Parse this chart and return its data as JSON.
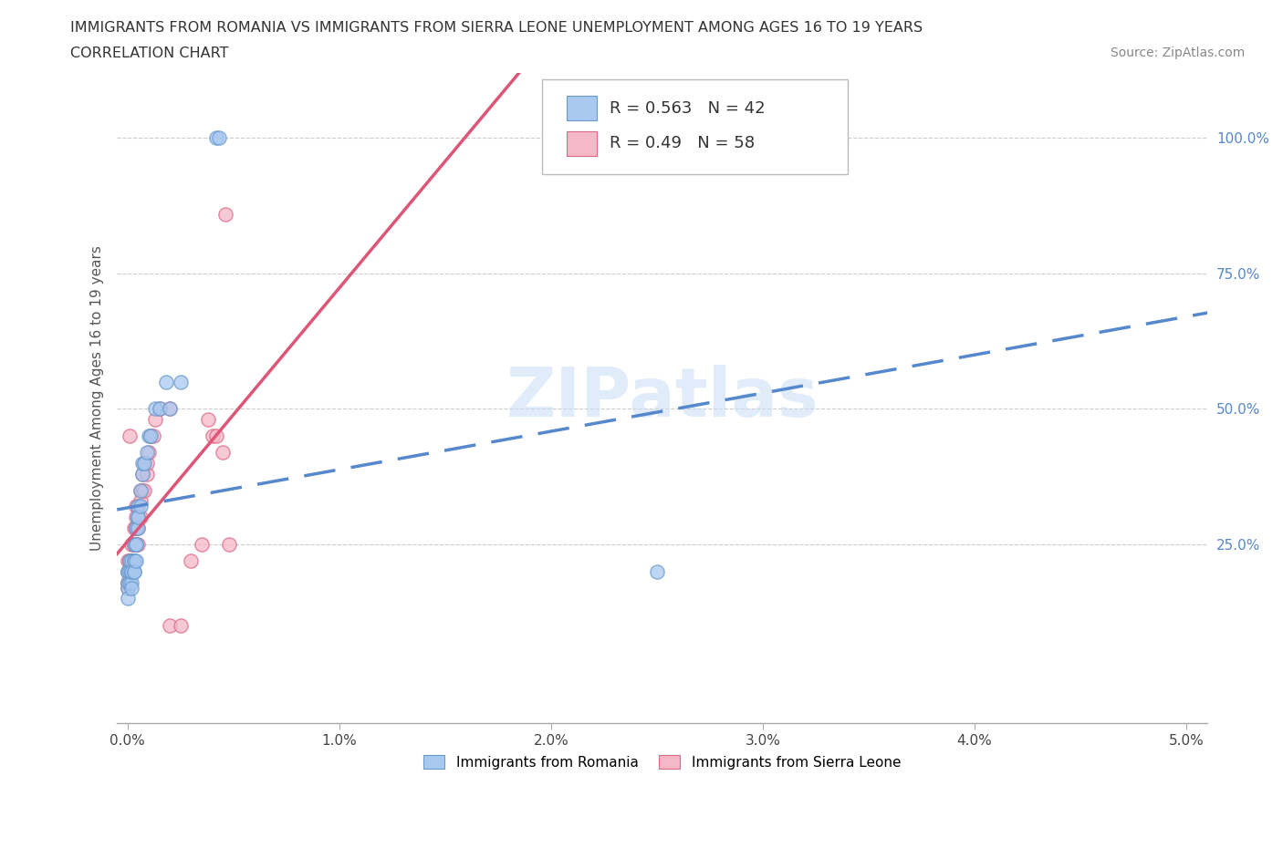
{
  "title_line1": "IMMIGRANTS FROM ROMANIA VS IMMIGRANTS FROM SIERRA LEONE UNEMPLOYMENT AMONG AGES 16 TO 19 YEARS",
  "title_line2": "CORRELATION CHART",
  "source_text": "Source: ZipAtlas.com",
  "ylabel": "Unemployment Among Ages 16 to 19 years",
  "xlim": [
    -0.0005,
    0.051
  ],
  "ylim": [
    -0.08,
    1.12
  ],
  "xtick_labels": [
    "0.0%",
    "1.0%",
    "2.0%",
    "3.0%",
    "4.0%",
    "5.0%"
  ],
  "xtick_values": [
    0.0,
    0.01,
    0.02,
    0.03,
    0.04,
    0.05
  ],
  "ytick_labels": [
    "25.0%",
    "50.0%",
    "75.0%",
    "100.0%"
  ],
  "ytick_values": [
    0.25,
    0.5,
    0.75,
    1.0
  ],
  "romania_color": "#a8c8f0",
  "romania_edge": "#6699cc",
  "sierra_leone_color": "#f5b8c8",
  "sierra_leone_edge": "#dd6688",
  "romania_trend_color": "#5588cc",
  "sierra_leone_trend_color": "#dd5577",
  "romania_R": 0.563,
  "romania_N": 42,
  "sierra_leone_R": 0.49,
  "sierra_leone_N": 58,
  "legend_label_romania": "Immigrants from Romania",
  "legend_label_sierra": "Immigrants from Sierra Leone",
  "watermark": "ZIPatlas",
  "romania_points": [
    [
      0.0,
      0.2
    ],
    [
      0.0,
      0.17
    ],
    [
      0.0,
      0.2
    ],
    [
      0.0,
      0.18
    ],
    [
      0.0,
      0.15
    ],
    [
      0.0001,
      0.18
    ],
    [
      0.0001,
      0.22
    ],
    [
      0.0001,
      0.2
    ],
    [
      0.0002,
      0.2
    ],
    [
      0.0002,
      0.18
    ],
    [
      0.0002,
      0.22
    ],
    [
      0.0002,
      0.17
    ],
    [
      0.0002,
      0.2
    ],
    [
      0.0003,
      0.22
    ],
    [
      0.0003,
      0.25
    ],
    [
      0.0003,
      0.2
    ],
    [
      0.0003,
      0.22
    ],
    [
      0.0003,
      0.2
    ],
    [
      0.0004,
      0.25
    ],
    [
      0.0004,
      0.22
    ],
    [
      0.0004,
      0.28
    ],
    [
      0.0004,
      0.25
    ],
    [
      0.0005,
      0.3
    ],
    [
      0.0005,
      0.28
    ],
    [
      0.0005,
      0.32
    ],
    [
      0.0005,
      0.3
    ],
    [
      0.0006,
      0.35
    ],
    [
      0.0006,
      0.32
    ],
    [
      0.0007,
      0.38
    ],
    [
      0.0007,
      0.4
    ],
    [
      0.0008,
      0.4
    ],
    [
      0.0009,
      0.42
    ],
    [
      0.001,
      0.45
    ],
    [
      0.0011,
      0.45
    ],
    [
      0.0013,
      0.5
    ],
    [
      0.0015,
      0.5
    ],
    [
      0.0018,
      0.55
    ],
    [
      0.002,
      0.5
    ],
    [
      0.0025,
      0.55
    ],
    [
      0.0042,
      1.0
    ],
    [
      0.0043,
      1.0
    ],
    [
      0.025,
      0.2
    ]
  ],
  "sierra_leone_points": [
    [
      0.0,
      0.2
    ],
    [
      0.0,
      0.2
    ],
    [
      0.0,
      0.18
    ],
    [
      0.0,
      0.22
    ],
    [
      0.0,
      0.18
    ],
    [
      0.0,
      0.17
    ],
    [
      0.0001,
      0.2
    ],
    [
      0.0001,
      0.22
    ],
    [
      0.0001,
      0.18
    ],
    [
      0.0001,
      0.2
    ],
    [
      0.0001,
      0.45
    ],
    [
      0.0001,
      0.22
    ],
    [
      0.0002,
      0.2
    ],
    [
      0.0002,
      0.22
    ],
    [
      0.0002,
      0.25
    ],
    [
      0.0002,
      0.22
    ],
    [
      0.0002,
      0.2
    ],
    [
      0.0002,
      0.22
    ],
    [
      0.0003,
      0.25
    ],
    [
      0.0003,
      0.22
    ],
    [
      0.0003,
      0.28
    ],
    [
      0.0003,
      0.25
    ],
    [
      0.0003,
      0.22
    ],
    [
      0.0003,
      0.25
    ],
    [
      0.0004,
      0.28
    ],
    [
      0.0004,
      0.25
    ],
    [
      0.0004,
      0.3
    ],
    [
      0.0004,
      0.32
    ],
    [
      0.0004,
      0.28
    ],
    [
      0.0005,
      0.3
    ],
    [
      0.0005,
      0.28
    ],
    [
      0.0005,
      0.32
    ],
    [
      0.0005,
      0.25
    ],
    [
      0.0006,
      0.35
    ],
    [
      0.0006,
      0.3
    ],
    [
      0.0006,
      0.33
    ],
    [
      0.0007,
      0.35
    ],
    [
      0.0007,
      0.38
    ],
    [
      0.0008,
      0.4
    ],
    [
      0.0008,
      0.35
    ],
    [
      0.0009,
      0.38
    ],
    [
      0.0009,
      0.4
    ],
    [
      0.001,
      0.42
    ],
    [
      0.0011,
      0.45
    ],
    [
      0.0012,
      0.45
    ],
    [
      0.0013,
      0.48
    ],
    [
      0.0015,
      0.5
    ],
    [
      0.002,
      0.5
    ],
    [
      0.002,
      0.1
    ],
    [
      0.0025,
      0.1
    ],
    [
      0.003,
      0.22
    ],
    [
      0.0035,
      0.25
    ],
    [
      0.0038,
      0.48
    ],
    [
      0.004,
      0.45
    ],
    [
      0.0042,
      0.45
    ],
    [
      0.0045,
      0.42
    ],
    [
      0.0046,
      0.86
    ],
    [
      0.0048,
      0.25
    ]
  ]
}
